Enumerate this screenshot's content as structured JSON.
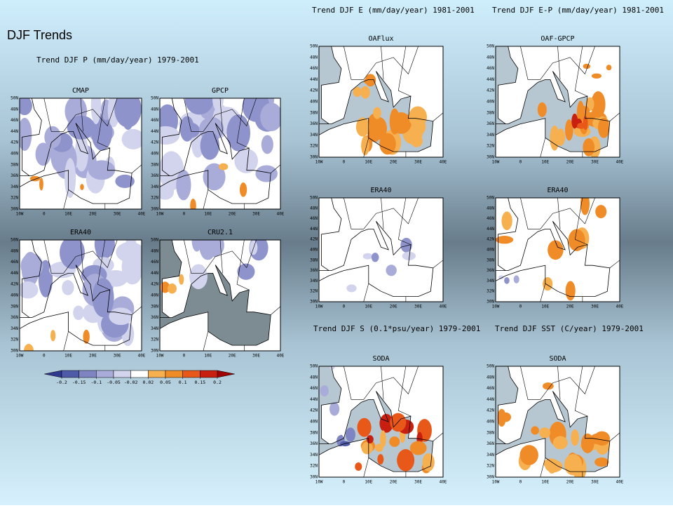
{
  "header": {
    "title": "DJF Trends"
  },
  "group_titles": {
    "precip": "Trend DJF P (mm/day/year) 1979-2001",
    "evap": "Trend DJF E (mm/day/year) 1981-2001",
    "emp": "Trend DJF E-P (mm/day/year) 1981-2001",
    "salinity": "Trend DJF S (0.1*psu/year) 1979-2001",
    "sst": "Trend DJF SST (C/year) 1979-2001"
  },
  "panels": [
    {
      "title": "CMAP"
    },
    {
      "title": "GPCP"
    },
    {
      "title": "ERA40"
    },
    {
      "title": "CRU2.1"
    },
    {
      "title": "OAFlux"
    },
    {
      "title": "OAF-GPCP"
    },
    {
      "title": "ERA40"
    },
    {
      "title": "ERA40"
    },
    {
      "title": "SODA"
    },
    {
      "title": "SODA"
    }
  ],
  "lat_ticks": [
    "50N",
    "48N",
    "46N",
    "44N",
    "42N",
    "40N",
    "38N",
    "36N",
    "34N",
    "32N",
    "30N"
  ],
  "lon_ticks": [
    "10W",
    "0",
    "10E",
    "20E",
    "30E",
    "40E"
  ],
  "colorbar": {
    "ticks": [
      -0.2,
      -0.15,
      -0.1,
      -0.05,
      -0.02,
      0.02,
      0.05,
      0.1,
      0.15,
      0.2
    ]
  }
}
